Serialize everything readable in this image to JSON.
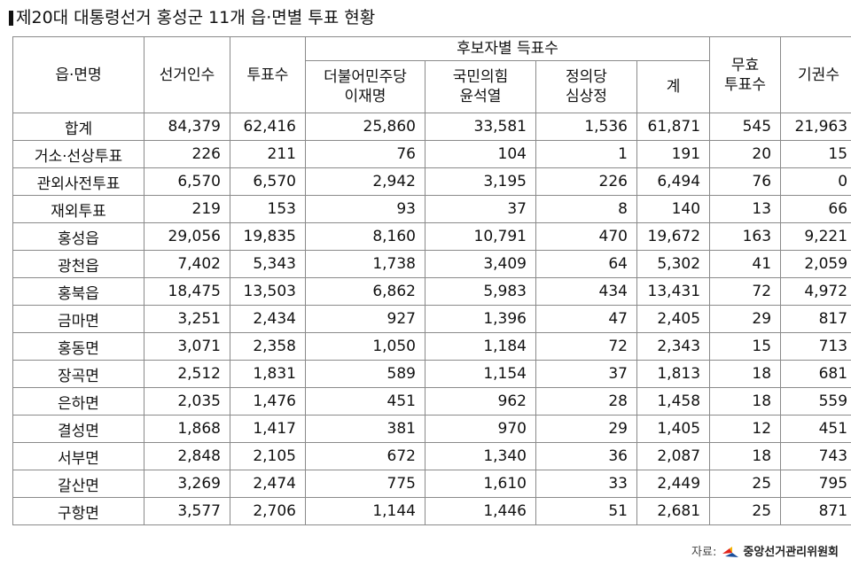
{
  "title": "제20대 대통령선거 홍성군 11개 읍·면별 투표 현황",
  "headers": {
    "district": "읍·면명",
    "electorate": "선거인수",
    "votes": "투표수",
    "candidate_group": "후보자별 득표수",
    "cand1_party": "더불어민주당",
    "cand1_name": "이재명",
    "cand2_party": "국민의힘",
    "cand2_name": "윤석열",
    "cand3_party": "정의당",
    "cand3_name": "심상정",
    "sum": "계",
    "invalid_line1": "무효",
    "invalid_line2": "투표수",
    "abstain": "기권수"
  },
  "rows": [
    [
      "합계",
      "84,379",
      "62,416",
      "25,860",
      "33,581",
      "1,536",
      "61,871",
      "545",
      "21,963"
    ],
    [
      "거소·선상투표",
      "226",
      "211",
      "76",
      "104",
      "1",
      "191",
      "20",
      "15"
    ],
    [
      "관외사전투표",
      "6,570",
      "6,570",
      "2,942",
      "3,195",
      "226",
      "6,494",
      "76",
      "0"
    ],
    [
      "재외투표",
      "219",
      "153",
      "93",
      "37",
      "8",
      "140",
      "13",
      "66"
    ],
    [
      "홍성읍",
      "29,056",
      "19,835",
      "8,160",
      "10,791",
      "470",
      "19,672",
      "163",
      "9,221"
    ],
    [
      "광천읍",
      "7,402",
      "5,343",
      "1,738",
      "3,409",
      "64",
      "5,302",
      "41",
      "2,059"
    ],
    [
      "홍북읍",
      "18,475",
      "13,503",
      "6,862",
      "5,983",
      "434",
      "13,431",
      "72",
      "4,972"
    ],
    [
      "금마면",
      "3,251",
      "2,434",
      "927",
      "1,396",
      "47",
      "2,405",
      "29",
      "817"
    ],
    [
      "홍동면",
      "3,071",
      "2,358",
      "1,050",
      "1,184",
      "72",
      "2,343",
      "15",
      "713"
    ],
    [
      "장곡면",
      "2,512",
      "1,831",
      "589",
      "1,154",
      "37",
      "1,813",
      "18",
      "681"
    ],
    [
      "은하면",
      "2,035",
      "1,476",
      "451",
      "962",
      "28",
      "1,458",
      "18",
      "559"
    ],
    [
      "결성면",
      "1,868",
      "1,417",
      "381",
      "970",
      "29",
      "1,405",
      "12",
      "451"
    ],
    [
      "서부면",
      "2,848",
      "2,105",
      "672",
      "1,340",
      "36",
      "2,087",
      "18",
      "743"
    ],
    [
      "갈산면",
      "3,269",
      "2,474",
      "775",
      "1,610",
      "33",
      "2,449",
      "25",
      "795"
    ],
    [
      "구항면",
      "3,577",
      "2,706",
      "1,144",
      "1,446",
      "51",
      "2,681",
      "25",
      "871"
    ]
  ],
  "source": {
    "label": "자료:",
    "org": "중앙선거관리위원회"
  },
  "colors": {
    "border": "#8a8a8a",
    "logo_red": "#e2231a",
    "logo_blue": "#1b4f9c",
    "logo_yellow": "#f4b400"
  }
}
